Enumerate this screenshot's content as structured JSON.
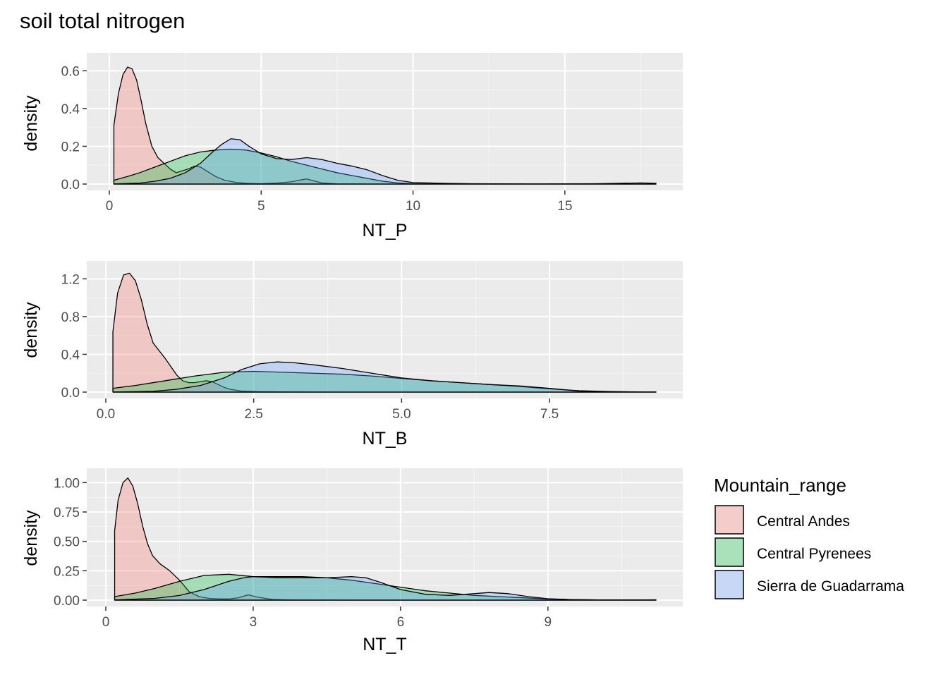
{
  "title": "soil total nitrogen",
  "legend": {
    "title": "Mountain_range",
    "items": [
      {
        "label": "Central Andes",
        "color": "#F8766D"
      },
      {
        "label": "Central Pyrenees",
        "color": "#00BA38"
      },
      {
        "label": "Sierra de Guadarrama",
        "color": "#619CFF"
      }
    ],
    "position": "right"
  },
  "chart_data": [
    {
      "type": "area",
      "xlabel": "NT_P",
      "ylabel": "density",
      "xlim": [
        0,
        18
      ],
      "ylim": [
        0,
        0.65
      ],
      "xticks": [
        0,
        5,
        10,
        15
      ],
      "xtick_labels": [
        "0",
        "5",
        "10",
        "15"
      ],
      "yticks": [
        0,
        0.2,
        0.4,
        0.6
      ],
      "ytick_labels": [
        "0.0",
        "0.2",
        "0.4",
        "0.6"
      ],
      "grid": true,
      "series": [
        {
          "name": "Central Andes",
          "color": "#F8766D",
          "x": [
            0.15,
            0.3,
            0.45,
            0.6,
            0.75,
            0.9,
            1.05,
            1.2,
            1.4,
            1.6,
            1.8,
            2.0,
            2.2,
            2.4,
            2.6,
            2.8,
            3.0,
            3.2,
            3.5,
            3.8,
            4.2,
            4.6,
            5.0,
            5.5,
            6.0,
            6.3,
            6.5,
            6.7,
            7.0,
            7.5,
            8.5,
            10,
            12,
            14,
            16,
            18
          ],
          "y": [
            0.31,
            0.48,
            0.58,
            0.62,
            0.61,
            0.55,
            0.44,
            0.32,
            0.2,
            0.14,
            0.11,
            0.08,
            0.06,
            0.07,
            0.08,
            0.095,
            0.09,
            0.07,
            0.04,
            0.02,
            0.008,
            0.003,
            0.002,
            0.005,
            0.012,
            0.022,
            0.027,
            0.018,
            0.006,
            0.001,
            0.0,
            0.0,
            0.0,
            0.0,
            0.0,
            0.0
          ]
        },
        {
          "name": "Central Pyrenees",
          "color": "#00BA38",
          "x": [
            0.15,
            0.6,
            1.0,
            1.5,
            2.0,
            2.5,
            3.0,
            3.5,
            4.0,
            4.5,
            5.0,
            5.5,
            6.0,
            6.5,
            7.0,
            7.5,
            8.0,
            8.5,
            9.0,
            9.5,
            10.0,
            11,
            12,
            14,
            16,
            18
          ],
          "y": [
            0.02,
            0.04,
            0.06,
            0.09,
            0.12,
            0.15,
            0.17,
            0.18,
            0.185,
            0.18,
            0.165,
            0.145,
            0.12,
            0.1,
            0.08,
            0.06,
            0.045,
            0.03,
            0.015,
            0.006,
            0.002,
            0.0,
            0.0,
            0.0,
            0.0,
            0.0
          ]
        },
        {
          "name": "Sierra de Guadarrama",
          "color": "#619CFF",
          "x": [
            0.15,
            1.0,
            1.5,
            2.0,
            2.5,
            3.0,
            3.4,
            3.7,
            4.0,
            4.3,
            4.6,
            5.0,
            5.5,
            6.0,
            6.5,
            7.0,
            7.5,
            8.0,
            8.5,
            9.0,
            9.5,
            10.0,
            11,
            12,
            14,
            16,
            17.5,
            18
          ],
          "y": [
            0.001,
            0.005,
            0.015,
            0.03,
            0.06,
            0.11,
            0.17,
            0.21,
            0.24,
            0.235,
            0.2,
            0.16,
            0.135,
            0.13,
            0.14,
            0.13,
            0.11,
            0.095,
            0.075,
            0.045,
            0.02,
            0.008,
            0.004,
            0.002,
            0.001,
            0.002,
            0.006,
            0.004
          ]
        }
      ]
    },
    {
      "type": "area",
      "xlabel": "NT_B",
      "ylabel": "density",
      "xlim": [
        0,
        9.3
      ],
      "ylim": [
        0,
        1.3
      ],
      "xticks": [
        0,
        2.5,
        5.0,
        7.5
      ],
      "xtick_labels": [
        "0.0",
        "2.5",
        "5.0",
        "7.5"
      ],
      "yticks": [
        0,
        0.4,
        0.8,
        1.2
      ],
      "ytick_labels": [
        "0.0",
        "0.4",
        "0.8",
        "1.2"
      ],
      "grid": true,
      "series": [
        {
          "name": "Central Andes",
          "color": "#F8766D",
          "x": [
            0.12,
            0.2,
            0.3,
            0.4,
            0.5,
            0.6,
            0.7,
            0.8,
            0.9,
            1.0,
            1.1,
            1.2,
            1.3,
            1.4,
            1.5,
            1.6,
            1.7,
            1.8,
            1.9,
            2.0,
            2.1,
            2.3,
            2.6,
            3.0,
            4.0,
            6.0,
            9.3
          ],
          "y": [
            0.64,
            1.05,
            1.24,
            1.26,
            1.18,
            0.98,
            0.72,
            0.52,
            0.44,
            0.36,
            0.27,
            0.18,
            0.12,
            0.1,
            0.1,
            0.11,
            0.12,
            0.11,
            0.08,
            0.05,
            0.03,
            0.01,
            0.004,
            0.002,
            0.0,
            0.0,
            0.0
          ]
        },
        {
          "name": "Central Pyrenees",
          "color": "#00BA38",
          "x": [
            0.12,
            0.5,
            1.0,
            1.5,
            2.0,
            2.5,
            3.0,
            3.5,
            4.0,
            4.5,
            5.0,
            5.5,
            6.0,
            6.5,
            7.0,
            7.5,
            8.0,
            8.5,
            9.0,
            9.3
          ],
          "y": [
            0.04,
            0.07,
            0.12,
            0.17,
            0.21,
            0.22,
            0.21,
            0.2,
            0.19,
            0.17,
            0.145,
            0.12,
            0.1,
            0.08,
            0.06,
            0.035,
            0.015,
            0.006,
            0.002,
            0.001
          ]
        },
        {
          "name": "Sierra de Guadarrama",
          "color": "#619CFF",
          "x": [
            0.12,
            0.8,
            1.2,
            1.6,
            2.0,
            2.3,
            2.6,
            2.9,
            3.2,
            3.5,
            4.0,
            4.5,
            5.0,
            5.5,
            6.0,
            6.5,
            7.0,
            7.5,
            8.0,
            8.5,
            9.0,
            9.3
          ],
          "y": [
            0.001,
            0.008,
            0.03,
            0.07,
            0.15,
            0.24,
            0.3,
            0.32,
            0.31,
            0.29,
            0.25,
            0.2,
            0.15,
            0.12,
            0.1,
            0.08,
            0.065,
            0.04,
            0.01,
            0.003,
            0.001,
            0.001
          ]
        }
      ]
    },
    {
      "type": "area",
      "xlabel": "NT_T",
      "ylabel": "density",
      "xlim": [
        0,
        11.2
      ],
      "ylim": [
        0,
        1.05
      ],
      "xticks": [
        0,
        3,
        6,
        9
      ],
      "xtick_labels": [
        "0",
        "3",
        "6",
        "9"
      ],
      "yticks": [
        0,
        0.25,
        0.5,
        0.75,
        1.0
      ],
      "ytick_labels": [
        "0.00",
        "0.25",
        "0.50",
        "0.75",
        "1.00"
      ],
      "grid": true,
      "series": [
        {
          "name": "Central Andes",
          "color": "#F8766D",
          "x": [
            0.18,
            0.25,
            0.35,
            0.45,
            0.55,
            0.65,
            0.75,
            0.85,
            0.95,
            1.1,
            1.3,
            1.5,
            1.7,
            1.9,
            2.1,
            2.3,
            2.5,
            2.7,
            2.9,
            3.1,
            3.4,
            3.8,
            5.0,
            8.0,
            11.2
          ],
          "y": [
            0.59,
            0.85,
            1.0,
            1.04,
            0.97,
            0.82,
            0.63,
            0.48,
            0.38,
            0.31,
            0.25,
            0.17,
            0.07,
            0.03,
            0.015,
            0.01,
            0.01,
            0.02,
            0.045,
            0.025,
            0.005,
            0.001,
            0.0,
            0.0,
            0.0
          ]
        },
        {
          "name": "Central Pyrenees",
          "color": "#00BA38",
          "x": [
            0.18,
            0.6,
            1.0,
            1.5,
            2.0,
            2.5,
            3.0,
            3.5,
            4.0,
            4.5,
            5.0,
            5.5,
            6.0,
            6.5,
            7.0,
            7.5,
            8.0,
            8.5,
            9.0,
            9.5,
            10.0,
            11.2
          ],
          "y": [
            0.03,
            0.06,
            0.1,
            0.16,
            0.21,
            0.22,
            0.2,
            0.2,
            0.2,
            0.19,
            0.17,
            0.14,
            0.11,
            0.08,
            0.06,
            0.04,
            0.03,
            0.02,
            0.01,
            0.004,
            0.002,
            0.001
          ]
        },
        {
          "name": "Sierra de Guadarrama",
          "color": "#619CFF",
          "x": [
            0.18,
            1.0,
            1.5,
            2.0,
            2.5,
            2.8,
            3.0,
            3.5,
            4.0,
            4.5,
            5.0,
            5.3,
            5.6,
            6.0,
            6.5,
            7.0,
            7.5,
            7.8,
            8.2,
            8.6,
            9.0,
            9.5,
            10.0,
            11.0,
            11.2
          ],
          "y": [
            0.002,
            0.015,
            0.04,
            0.09,
            0.16,
            0.19,
            0.2,
            0.19,
            0.19,
            0.19,
            0.2,
            0.19,
            0.15,
            0.09,
            0.05,
            0.04,
            0.055,
            0.065,
            0.055,
            0.03,
            0.012,
            0.004,
            0.002,
            0.002,
            0.003
          ]
        }
      ]
    }
  ]
}
